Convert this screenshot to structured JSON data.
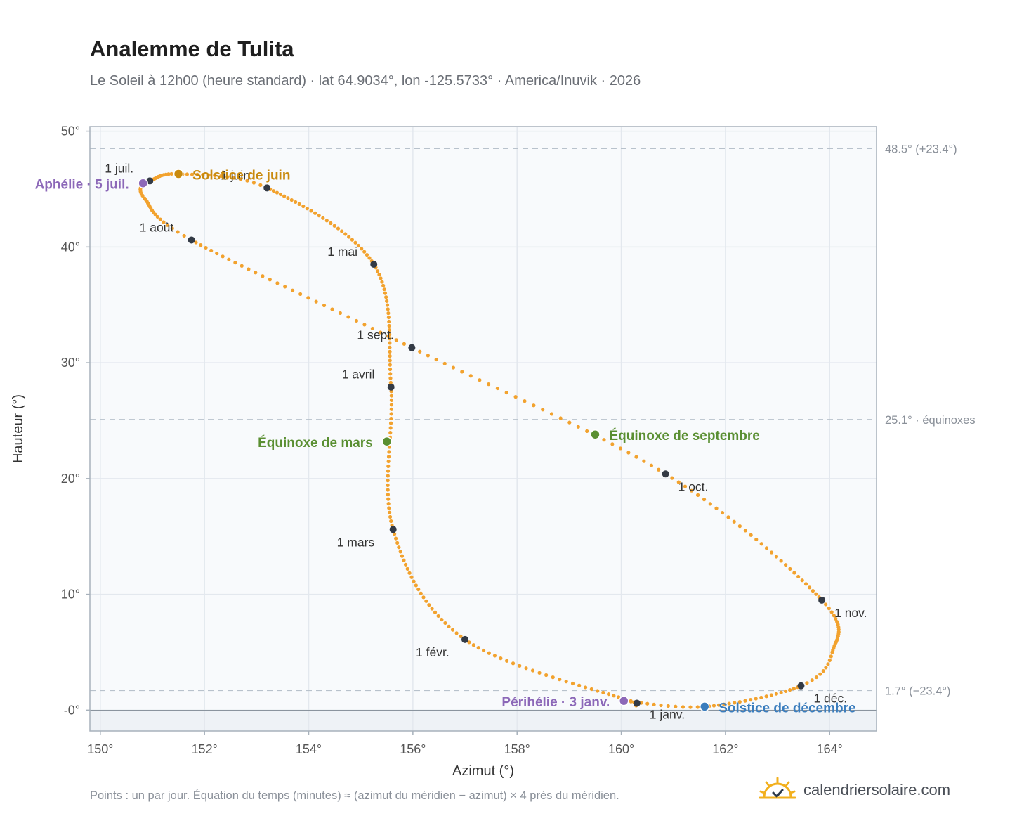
{
  "header": {
    "title": "Analemme de Tulita",
    "subtitle": "Le Soleil à 12h00 (heure standard) · lat 64.9034°, lon -125.5733° · America/Inuvik · 2026"
  },
  "footer": {
    "note": "Points : un par jour. Équation du temps (minutes) ≈ (azimut du méridien − azimut) × 4 près du méridien.",
    "brand": "calendriersolaire.com"
  },
  "colors": {
    "curve": "#f2a22e",
    "month_marker": "#333a45",
    "solstice_june": "#c98a0e",
    "solstice_december": "#3a7dbd",
    "equinox": "#5a8f32",
    "apsis": "#8c68b8",
    "plot_background": "#f8fafc",
    "grid": "#e3e8ee",
    "reference_line": "#b8c2cc"
  },
  "chart_data": {
    "type": "scatter",
    "xlabel": "Azimut (°)",
    "ylabel": "Hauteur (°)",
    "xlim": [
      149.8,
      164.9
    ],
    "ylim": [
      -1.8,
      50.4
    ],
    "x_ticks": [
      150,
      152,
      154,
      156,
      158,
      160,
      162,
      164
    ],
    "x_tick_labels": [
      "150°",
      "152°",
      "154°",
      "156°",
      "158°",
      "160°",
      "162°",
      "164°"
    ],
    "y_ticks": [
      0,
      10,
      20,
      30,
      40,
      50
    ],
    "y_tick_labels": [
      "-0°",
      "10°",
      "20°",
      "30°",
      "40°",
      "50°"
    ],
    "grid": true,
    "horizon_altitude": 0,
    "reference_lines": [
      {
        "y": 48.5,
        "label": "48.5° (+23.4°)"
      },
      {
        "y": 25.1,
        "label": "25.1° · équinoxes"
      },
      {
        "y": 1.7,
        "label": "1.7° (−23.4°)"
      }
    ],
    "month_markers": [
      {
        "label": "1 janv.",
        "x": 160.3,
        "y": 0.6
      },
      {
        "label": "1 févr.",
        "x": 157.0,
        "y": 6.1
      },
      {
        "label": "1 mars",
        "x": 155.62,
        "y": 15.6
      },
      {
        "label": "1 avril",
        "x": 155.58,
        "y": 27.9
      },
      {
        "label": "1 mai",
        "x": 155.25,
        "y": 38.5
      },
      {
        "label": "1 juin",
        "x": 153.2,
        "y": 45.1
      },
      {
        "label": "1 juil.",
        "x": 150.95,
        "y": 45.7
      },
      {
        "label": "1 août",
        "x": 151.75,
        "y": 40.6
      },
      {
        "label": "1 sept.",
        "x": 155.98,
        "y": 31.3
      },
      {
        "label": "1 oct.",
        "x": 160.85,
        "y": 20.4
      },
      {
        "label": "1 nov.",
        "x": 163.85,
        "y": 9.5
      },
      {
        "label": "1 déc.",
        "x": 163.45,
        "y": 2.1
      }
    ],
    "special_points": [
      {
        "label": "Solstice de juin",
        "x": 151.5,
        "y": 46.3,
        "kind": "solstice_june"
      },
      {
        "label": "Solstice de décembre",
        "x": 161.6,
        "y": 0.3,
        "kind": "solstice_december"
      },
      {
        "label": "Équinoxe de mars",
        "x": 155.5,
        "y": 23.2,
        "kind": "equinox"
      },
      {
        "label": "Équinoxe de septembre",
        "x": 159.5,
        "y": 23.8,
        "kind": "equinox"
      },
      {
        "label": "Aphélie · 5 juil.",
        "x": 150.82,
        "y": 45.5,
        "kind": "apsis"
      },
      {
        "label": "Périhélie · 3 janv.",
        "x": 160.05,
        "y": 0.8,
        "kind": "apsis"
      }
    ]
  }
}
